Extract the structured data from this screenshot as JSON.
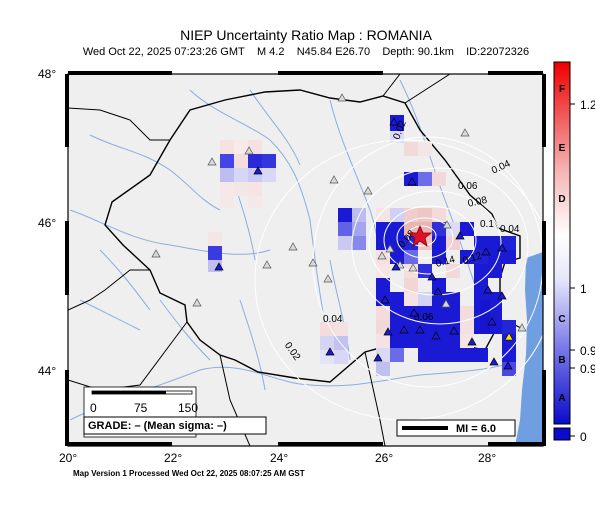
{
  "header": {
    "title": "NIEP Uncertainty Ratio Map : ROMANIA",
    "info": {
      "datetime": "Wed Oct 22, 2025 07:23:26 GMT",
      "magnitude": "M 4.2",
      "location": "N45.84 E26.70",
      "depth": "Depth: 90.1km",
      "event_id": "ID:22072326"
    }
  },
  "map": {
    "lat_labels": [
      "48°",
      "46°",
      "44°"
    ],
    "lon_labels": [
      "20°",
      "22°",
      "24°",
      "26°",
      "28°"
    ],
    "contour_labels": [
      "0.02",
      "0.04",
      "0.06",
      "0.08",
      "0.08",
      "0.1",
      "0.14",
      "0.12",
      "0.04",
      "0.06",
      "0.04",
      "0.02"
    ],
    "scalebar": {
      "ticks": [
        "0",
        "75",
        "150"
      ]
    },
    "grade_text": "GRADE: – (Mean sigma: –)",
    "mi_legend": "MI = 6.0",
    "colors": {
      "land": "#efefef",
      "sea": "#6f9fe0",
      "border": "#000000",
      "rivers": "#89aee0",
      "contours": "#ffffff",
      "epicenter": "#e0102a",
      "station": "#808080",
      "blue": "#1515d8"
    }
  },
  "colorbar": {
    "grades": [
      "F",
      "E",
      "D",
      "C",
      "B",
      "A"
    ],
    "ticks": [
      "1.2",
      "1",
      "0.9",
      "0.9",
      "0"
    ]
  },
  "footer": "Map Version 1 Processed Wed Oct 22, 2025 08:07:25 AM GST"
}
